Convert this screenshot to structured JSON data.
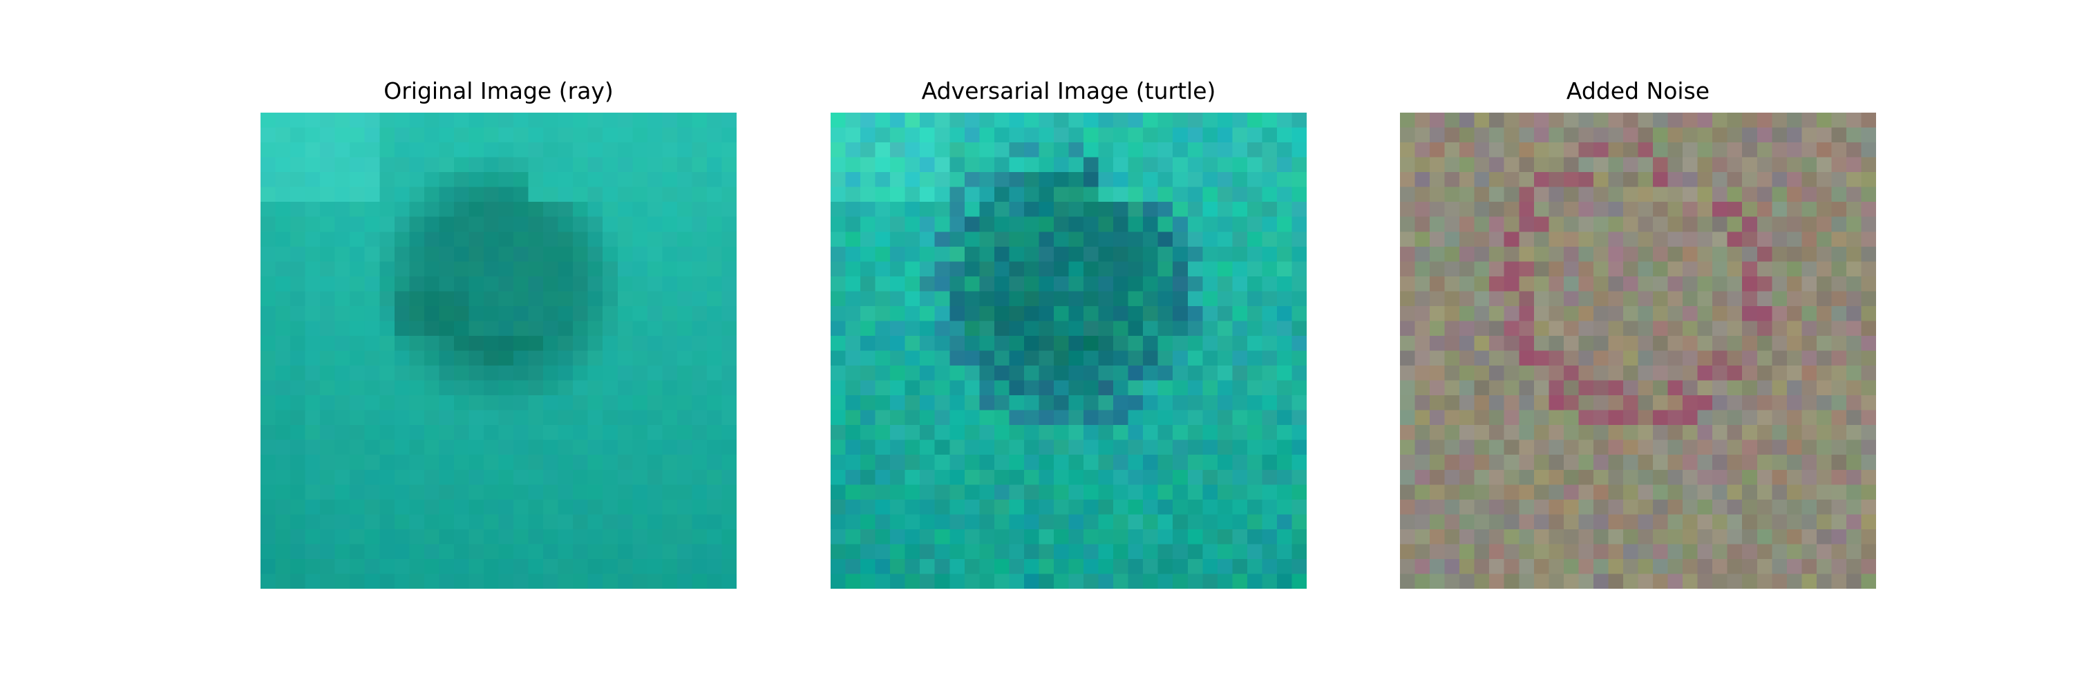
{
  "figure": {
    "panels": [
      {
        "title": "Original Image (ray)",
        "kind": "original",
        "label": "ray"
      },
      {
        "title": "Adversarial Image (turtle)",
        "kind": "adversarial",
        "label": "turtle"
      },
      {
        "title": "Added Noise",
        "kind": "noise"
      }
    ],
    "colors": {
      "water": "#27bfae",
      "water_dark": "#10988a",
      "ray_body": "#148a7c",
      "ray_shadow": "#0c7466",
      "adversarial_dark": "#0b5f73",
      "noise_base": "#8f8a78",
      "noise_pink": "#9b4a6a"
    }
  }
}
